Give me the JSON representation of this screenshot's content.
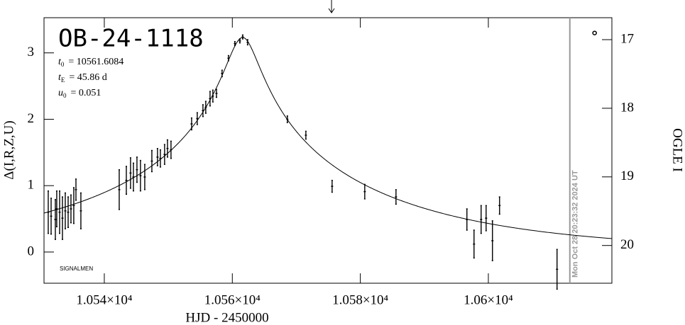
{
  "chart_data": {
    "type": "scatter",
    "title": "OB-24-1118",
    "xlabel": "HJD - 2450000",
    "ylabel": "Δ(I,R,Z,U)",
    "y2label": "OGLE I",
    "credit": "SIGNALMEN",
    "parameters": [
      {
        "symbol": "t",
        "subscript": "0",
        "value": 10561.6084,
        "value_label": "= 10561.6084"
      },
      {
        "symbol": "t",
        "subscript": "E",
        "value": 45.86,
        "value_label": "= 45.86 d"
      },
      {
        "symbol": "u",
        "subscript": "0",
        "value": 0.051,
        "value_label": "= 0.051"
      }
    ],
    "model": "paczynski",
    "color": "#000000",
    "x": [
      10531.24,
      10531.69,
      10532.35,
      10532.57,
      10533.02,
      10533.46,
      10533.9,
      10534.35,
      10534.79,
      10535.23,
      10535.57,
      10536.34,
      10542.33,
      10543.44,
      10544.1,
      10544.55,
      10545.1,
      10545.65,
      10546.32,
      10547.43,
      10548.31,
      10548.76,
      10549.42,
      10549.87,
      10550.42,
      10553.64,
      10554.52,
      10555.41,
      10555.85,
      10556.52,
      10556.96,
      10557.52,
      10558.4,
      10559.4,
      10560.4,
      10561.18,
      10561.62,
      10562.39,
      10568.6,
      10571.49,
      10575.59,
      10580.69,
      10585.57,
      10596.65,
      10597.76,
      10598.87,
      10599.65,
      10600.64,
      10601.75,
      10610.73
    ],
    "values": [
      0.6,
      0.54,
      0.49,
      0.65,
      0.6,
      0.51,
      0.62,
      0.6,
      0.65,
      0.7,
      0.94,
      0.62,
      0.94,
      1.08,
      1.19,
      1.13,
      1.24,
      1.15,
      1.13,
      1.37,
      1.43,
      1.41,
      1.47,
      1.56,
      1.54,
      1.93,
      2.01,
      2.13,
      2.18,
      2.31,
      2.35,
      2.39,
      2.69,
      2.92,
      3.14,
      3.18,
      3.24,
      3.16,
      2.0,
      1.76,
      0.99,
      0.91,
      0.83,
      0.49,
      0.12,
      0.49,
      0.51,
      0.17,
      0.7,
      -0.26
    ],
    "errors": [
      0.32,
      0.27,
      0.3,
      0.27,
      0.32,
      0.32,
      0.27,
      0.23,
      0.21,
      0.27,
      0.16,
      0.27,
      0.3,
      0.21,
      0.23,
      0.21,
      0.19,
      0.23,
      0.19,
      0.16,
      0.13,
      0.13,
      0.15,
      0.13,
      0.13,
      0.09,
      0.09,
      0.09,
      0.09,
      0.11,
      0.09,
      0.06,
      0.05,
      0.04,
      0.03,
      0.03,
      0.03,
      0.04,
      0.05,
      0.06,
      0.09,
      0.11,
      0.11,
      0.16,
      0.21,
      0.21,
      0.19,
      0.3,
      0.13,
      0.3
    ],
    "extra_point": {
      "x": 10616.6,
      "y": 3.3
    },
    "arrow_x": 10575.5,
    "now_line": {
      "x": 10612.73,
      "label": "Mon Oct 28 20:23:32 2024 UT",
      "color": "#999999"
    },
    "xlim": [
      10530.58,
      10619.3
    ],
    "xticks": [
      {
        "value": 10540,
        "label": "1.054×10⁴"
      },
      {
        "value": 10560,
        "label": "1.056×10⁴"
      },
      {
        "value": 10580,
        "label": "1.058×10⁴"
      },
      {
        "value": 10600,
        "label": "1.06×10⁴"
      }
    ],
    "ylim": [
      -0.47,
      3.53
    ],
    "yticks": [
      0,
      1,
      2,
      3
    ],
    "y2lim": [
      20.55,
      16.68
    ],
    "y2ticks": [
      17,
      18,
      19,
      20
    ]
  }
}
